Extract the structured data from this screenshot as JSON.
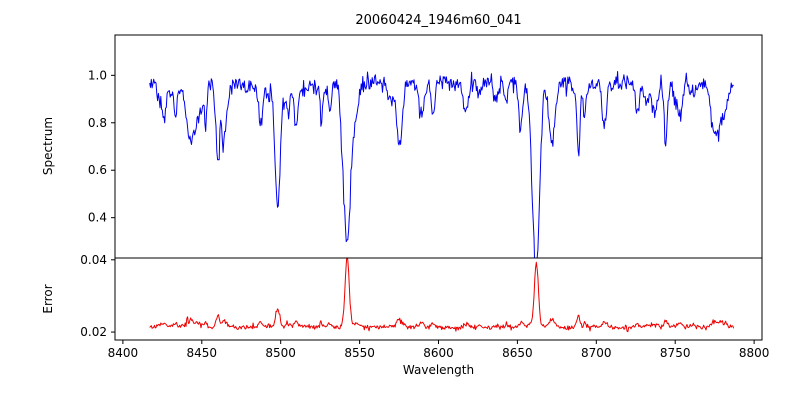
{
  "chart_data": {
    "type": "line",
    "title": "20060424_1946m60_041",
    "xlabel": "Wavelength",
    "xlim": [
      8395,
      8805
    ],
    "xticks": [
      8400,
      8450,
      8500,
      8550,
      8600,
      8650,
      8700,
      8750,
      8800
    ],
    "x_data_range": [
      8417,
      8787
    ],
    "sampling_step": 0.5,
    "seed": 20060424,
    "grid": false,
    "legend": false,
    "frame_color": "#000000",
    "panels": [
      {
        "ylabel": "Spectrum",
        "line_color": "#0000ee",
        "ylim": [
          0.23,
          1.17
        ],
        "yticks": [
          0.4,
          0.6,
          0.8,
          1.0
        ],
        "tick_decimals": 1,
        "continuum": 0.97,
        "noise_sigma": 0.018,
        "weak_lines": {
          "count": 85,
          "min_depth": 0.02,
          "max_extra_depth": 0.18,
          "min_width": 0.6,
          "max_width": 2.0
        },
        "major_lines": [
          {
            "center": 8498.0,
            "depth": 0.52,
            "width": 1.6
          },
          {
            "center": 8542.1,
            "depth": 0.69,
            "width": 2.2
          },
          {
            "center": 8662.1,
            "depth": 0.67,
            "width": 2.0
          },
          {
            "center": 8688.6,
            "depth": 0.22,
            "width": 1.1
          }
        ]
      },
      {
        "ylabel": "Error",
        "line_color": "#ee0000",
        "ylim": [
          0.0178,
          0.0405
        ],
        "yticks": [
          0.02,
          0.04
        ],
        "tick_decimals": 2,
        "baseline": 0.0213,
        "noise_sigma": 0.00035,
        "weak_line_factor": 0.008,
        "peaks": [
          {
            "center": 8498.0,
            "height": 0.005,
            "width": 1.3
          },
          {
            "center": 8542.1,
            "height": 0.0195,
            "width": 1.3
          },
          {
            "center": 8662.1,
            "height": 0.017,
            "width": 1.2
          },
          {
            "center": 8688.6,
            "height": 0.0022,
            "width": 1.0
          }
        ]
      }
    ]
  }
}
